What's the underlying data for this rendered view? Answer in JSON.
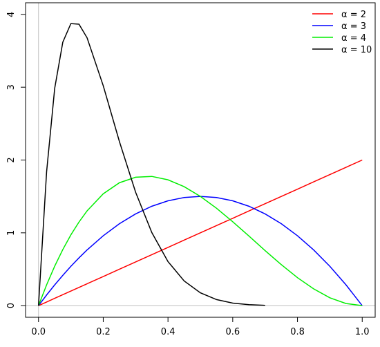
{
  "chart_data": {
    "type": "line",
    "x": [
      0,
      0.025,
      0.05,
      0.075,
      0.1,
      0.125,
      0.15,
      0.2,
      0.25,
      0.3,
      0.35,
      0.4,
      0.45,
      0.5,
      0.55,
      0.6,
      0.65,
      0.7,
      0.75,
      0.8,
      0.85,
      0.9,
      0.95,
      1
    ],
    "series": [
      {
        "name": "α = 2",
        "color": "#ff0000",
        "values": [
          0,
          0.05,
          0.1,
          0.15,
          0.2,
          0.25,
          0.3,
          0.4,
          0.5,
          0.6,
          0.7,
          0.8,
          0.9,
          1.0,
          1.1,
          1.2,
          1.3,
          1.4,
          1.5,
          1.6,
          1.7,
          1.8,
          1.9,
          2.0
        ]
      },
      {
        "name": "α = 3",
        "color": "#0000ff",
        "values": [
          0,
          0.146,
          0.285,
          0.416,
          0.54,
          0.656,
          0.765,
          0.96,
          1.125,
          1.26,
          1.365,
          1.44,
          1.485,
          1.5,
          1.485,
          1.44,
          1.365,
          1.26,
          1.125,
          0.96,
          0.765,
          0.54,
          0.285,
          0
        ]
      },
      {
        "name": "α = 4",
        "color": "#00ee00",
        "values": [
          0,
          0.285,
          0.542,
          0.77,
          0.972,
          1.148,
          1.301,
          1.536,
          1.688,
          1.764,
          1.775,
          1.728,
          1.634,
          1.5,
          1.337,
          1.152,
          0.956,
          0.756,
          0.563,
          0.384,
          0.23,
          0.108,
          0.029,
          0
        ]
      },
      {
        "name": "α = 10",
        "color": "#000000",
        "values": [
          0,
          1.838,
          2.985,
          3.618,
          3.874,
          3.866,
          3.679,
          3.02,
          2.253,
          1.557,
          1.004,
          0.605,
          0.339,
          0.176,
          0.083,
          0.035,
          0.013,
          0.004,
          null,
          null,
          null,
          null,
          null,
          null
        ]
      }
    ],
    "xlim": [
      -0.04,
      1.04
    ],
    "ylim": [
      -0.16,
      4.16
    ],
    "xticks": [
      {
        "value": 0,
        "label": "0.0"
      },
      {
        "value": 0.2,
        "label": "0.2"
      },
      {
        "value": 0.4,
        "label": "0.4"
      },
      {
        "value": 0.6,
        "label": "0.6"
      },
      {
        "value": 0.8,
        "label": "0.8"
      },
      {
        "value": 1,
        "label": "1.0"
      }
    ],
    "yticks": [
      0,
      1,
      2,
      3,
      4
    ],
    "legend": "top-right",
    "reference_color": "#bebebe"
  }
}
